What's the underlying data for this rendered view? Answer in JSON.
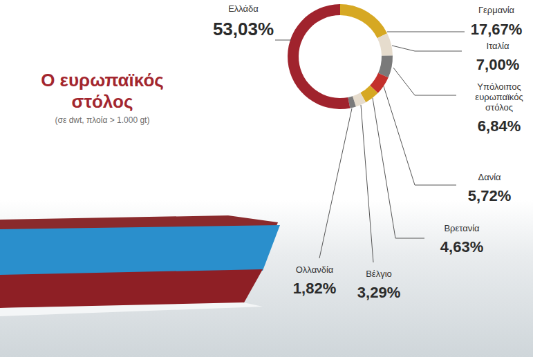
{
  "chart_data": {
    "type": "donut",
    "title": "Ο ευρωπαϊκός στόλος",
    "subtitle": "(σε dwt, πλοία > 1.000 gt)",
    "categories": [
      "Γερμανία",
      "Ιταλία",
      "Υπόλοιπος ευρωπαϊκός στόλος",
      "Δανία",
      "Βρετανία",
      "Βέλγιο",
      "Ολλανδία",
      "Ελλάδα"
    ],
    "values": [
      17.67,
      7.0,
      6.84,
      5.72,
      4.63,
      3.29,
      1.82,
      53.03
    ],
    "value_labels": [
      "17,67%",
      "7,00%",
      "6,84%",
      "5,72%",
      "4,63%",
      "3,29%",
      "1,82%",
      "53,03%"
    ],
    "colors": [
      "#d6a823",
      "#e6dccd",
      "#7a7a7a",
      "#c3302c",
      "#d6a823",
      "#e6dccd",
      "#7a7a7a",
      "#a0232d"
    ],
    "data_labels": true
  }
}
